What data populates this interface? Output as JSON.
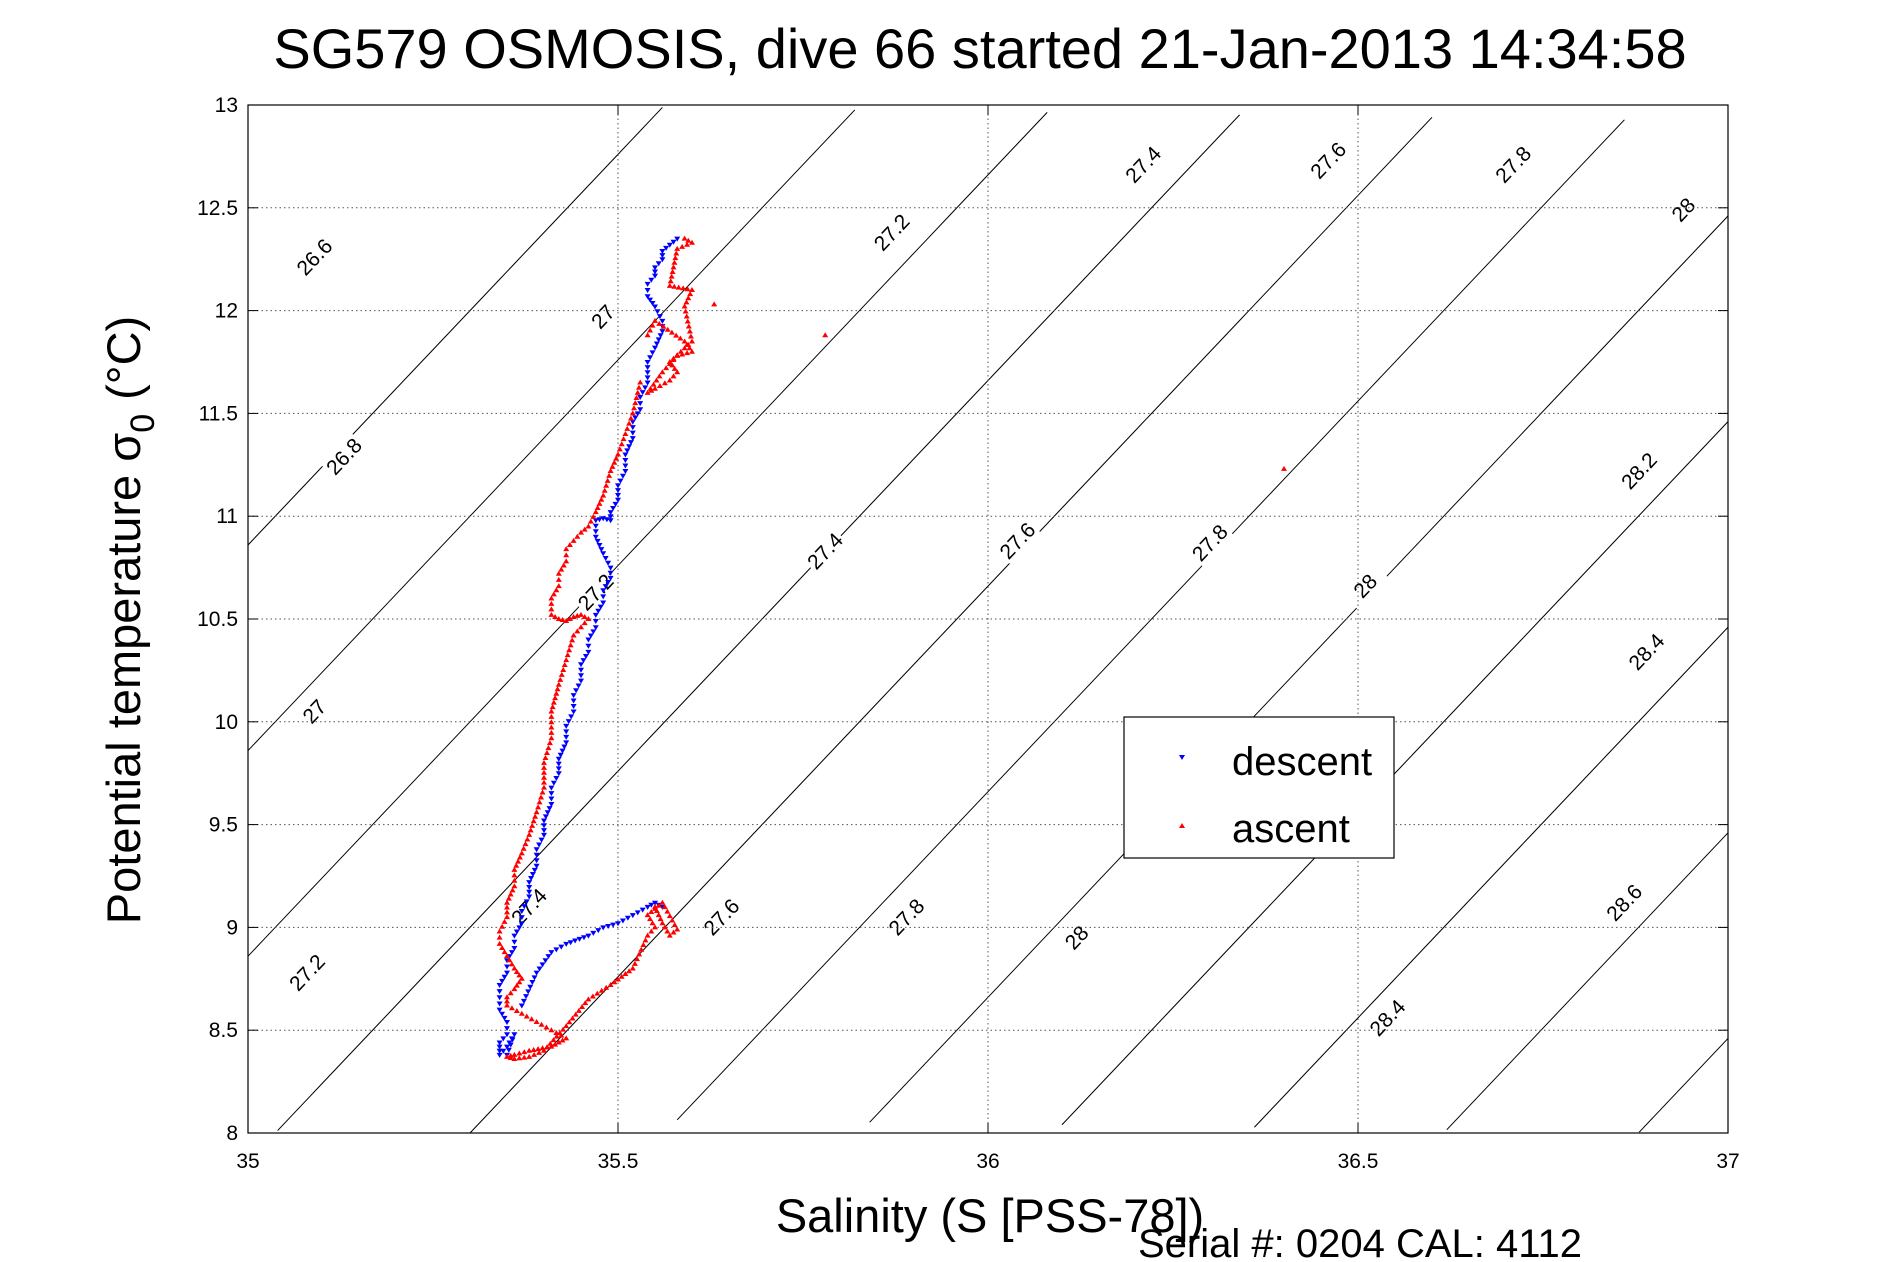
{
  "title": "SG579 OSMOSIS, dive 66 started 21-Jan-2013 14:34:58",
  "footer": "Serial #: 0204  CAL: 4112",
  "chart_data": {
    "type": "scatter",
    "title": "SG579 OSMOSIS, dive 66 started 21-Jan-2013 14:34:58",
    "xlabel": "Salinity (S [PSS-78])",
    "ylabel_main": "Potential temperature σ",
    "ylabel_sub": "0",
    "ylabel_unit": "(°C)",
    "xlim": [
      35,
      37
    ],
    "ylim": [
      8,
      13
    ],
    "grid": true,
    "legend_placement": "center-right",
    "x_ticks": [
      "35",
      "35.5",
      "36",
      "36.5",
      "37"
    ],
    "y_ticks": [
      "8",
      "8.5",
      "9",
      "9.5",
      "10",
      "10.5",
      "11",
      "11.5",
      "12",
      "12.5",
      "13"
    ],
    "density_contours": [
      26.6,
      26.8,
      27,
      27.2,
      27.4,
      27.6,
      27.8,
      28,
      28.2,
      28.4,
      28.6
    ],
    "contour_labels": [
      {
        "text": "26.6",
        "s": 35.09,
        "t": 12.26
      },
      {
        "text": "26.8",
        "s": 35.13,
        "t": 11.29
      },
      {
        "text": "27",
        "s": 35.48,
        "t": 11.97
      },
      {
        "text": "27",
        "s": 35.09,
        "t": 10.05
      },
      {
        "text": "27.2",
        "s": 35.87,
        "t": 12.38
      },
      {
        "text": "27.2",
        "s": 35.47,
        "t": 10.63
      },
      {
        "text": "27.2",
        "s": 35.08,
        "t": 8.78
      },
      {
        "text": "27.4",
        "s": 36.21,
        "t": 12.71
      },
      {
        "text": "27.4",
        "s": 35.78,
        "t": 10.83
      },
      {
        "text": "27.4",
        "s": 35.38,
        "t": 9.1
      },
      {
        "text": "27.6",
        "s": 36.46,
        "t": 12.73
      },
      {
        "text": "27.6",
        "s": 36.04,
        "t": 10.88
      },
      {
        "text": "27.6",
        "s": 35.64,
        "t": 9.05
      },
      {
        "text": "27.8",
        "s": 36.71,
        "t": 12.71
      },
      {
        "text": "27.8",
        "s": 36.3,
        "t": 10.87
      },
      {
        "text": "27.8",
        "s": 35.89,
        "t": 9.05
      },
      {
        "text": "28",
        "s": 36.94,
        "t": 12.49
      },
      {
        "text": "28",
        "s": 36.51,
        "t": 10.66
      },
      {
        "text": "28",
        "s": 36.12,
        "t": 8.95
      },
      {
        "text": "28.2",
        "s": 36.88,
        "t": 11.22
      },
      {
        "text": "28.4",
        "s": 36.89,
        "t": 10.34
      },
      {
        "text": "28.4",
        "s": 36.54,
        "t": 8.56
      },
      {
        "text": "28.6",
        "s": 36.86,
        "t": 9.12
      }
    ],
    "series": [
      {
        "name": "descent",
        "color": "#0000ff",
        "marker": "triangle-down",
        "x": [
          35.58,
          35.57,
          35.56,
          35.56,
          35.55,
          35.55,
          35.54,
          35.54,
          35.55,
          35.56,
          35.56,
          35.55,
          35.54,
          35.54,
          35.53,
          35.53,
          35.52,
          35.52,
          35.51,
          35.51,
          35.5,
          35.5,
          35.49,
          35.49,
          35.48,
          35.47,
          35.47,
          35.48,
          35.49,
          35.49,
          35.48,
          35.48,
          35.47,
          35.47,
          35.46,
          35.46,
          35.45,
          35.45,
          35.44,
          35.44,
          35.43,
          35.43,
          35.42,
          35.42,
          35.41,
          35.41,
          35.4,
          35.4,
          35.39,
          35.39,
          35.38,
          35.38,
          35.37,
          35.37,
          35.36,
          35.36,
          35.35,
          35.35,
          35.34,
          35.34,
          35.34,
          35.35,
          35.35,
          35.34,
          35.34,
          35.34,
          35.35,
          35.36,
          35.35,
          35.37,
          35.39,
          35.41,
          35.43,
          35.46,
          35.48,
          35.5,
          35.52,
          35.54,
          35.55,
          35.56
        ],
        "y": [
          12.35,
          12.32,
          12.29,
          12.25,
          12.21,
          12.17,
          12.13,
          12.07,
          12.02,
          11.95,
          11.9,
          11.82,
          11.75,
          11.65,
          11.58,
          11.52,
          11.46,
          11.38,
          11.3,
          11.22,
          11.15,
          11.08,
          11.02,
          10.98,
          10.99,
          10.98,
          10.9,
          10.82,
          10.75,
          10.7,
          10.64,
          10.58,
          10.52,
          10.46,
          10.4,
          10.34,
          10.28,
          10.2,
          10.13,
          10.05,
          9.98,
          9.9,
          9.82,
          9.75,
          9.68,
          9.6,
          9.52,
          9.45,
          9.38,
          9.3,
          9.22,
          9.15,
          9.08,
          9.02,
          8.96,
          8.9,
          8.84,
          8.78,
          8.72,
          8.66,
          8.6,
          8.54,
          8.48,
          8.44,
          8.4,
          8.38,
          8.42,
          8.48,
          8.38,
          8.62,
          8.78,
          8.88,
          8.92,
          8.96,
          9.0,
          9.02,
          9.06,
          9.1,
          9.12,
          9.1
        ]
      },
      {
        "name": "ascent",
        "color": "#ff0000",
        "marker": "triangle-up",
        "x": [
          35.59,
          35.6,
          35.58,
          35.57,
          35.6,
          35.59,
          35.6,
          35.57,
          35.58,
          35.57,
          35.55,
          35.54,
          35.56,
          35.58,
          35.6,
          35.59,
          35.55,
          35.54,
          35.53,
          35.52,
          35.51,
          35.5,
          35.49,
          35.48,
          35.47,
          35.46,
          35.45,
          35.44,
          35.43,
          35.43,
          35.42,
          35.42,
          35.41,
          35.41,
          35.42,
          35.43,
          35.44,
          35.45,
          35.46,
          35.44,
          35.43,
          35.42,
          35.41,
          35.41,
          35.4,
          35.4,
          35.39,
          35.38,
          35.37,
          35.36,
          35.36,
          35.35,
          35.35,
          35.34,
          35.34,
          35.35,
          35.36,
          35.37,
          35.36,
          35.35,
          35.35,
          35.37,
          35.39,
          35.41,
          35.43,
          35.42,
          35.41,
          35.38,
          35.36,
          35.35,
          35.36,
          35.38,
          35.4,
          35.43,
          35.46,
          35.49,
          35.52,
          35.54,
          35.55,
          35.54,
          35.56,
          35.58,
          35.57,
          35.56,
          35.55,
          35.63,
          35.78,
          36.4
        ],
        "y": [
          12.35,
          12.33,
          12.3,
          12.12,
          12.1,
          12.02,
          11.85,
          11.75,
          11.7,
          11.66,
          11.62,
          11.6,
          11.7,
          11.78,
          11.8,
          11.85,
          11.95,
          11.88,
          11.65,
          11.5,
          11.4,
          11.3,
          11.22,
          11.1,
          11.02,
          10.95,
          10.92,
          10.88,
          10.84,
          10.78,
          10.72,
          10.66,
          10.6,
          10.52,
          10.5,
          10.49,
          10.51,
          10.52,
          10.5,
          10.42,
          10.3,
          10.18,
          10.05,
          9.92,
          9.8,
          9.68,
          9.56,
          9.45,
          9.36,
          9.28,
          9.2,
          9.12,
          9.05,
          8.98,
          8.92,
          8.86,
          8.8,
          8.75,
          8.7,
          8.66,
          8.62,
          8.58,
          8.54,
          8.5,
          8.46,
          8.44,
          8.42,
          8.4,
          8.38,
          8.37,
          8.36,
          8.37,
          8.4,
          8.52,
          8.65,
          8.72,
          8.8,
          8.96,
          9.0,
          9.06,
          9.12,
          8.99,
          8.96,
          9.02,
          9.1,
          12.03,
          11.88,
          11.23
        ]
      }
    ]
  }
}
